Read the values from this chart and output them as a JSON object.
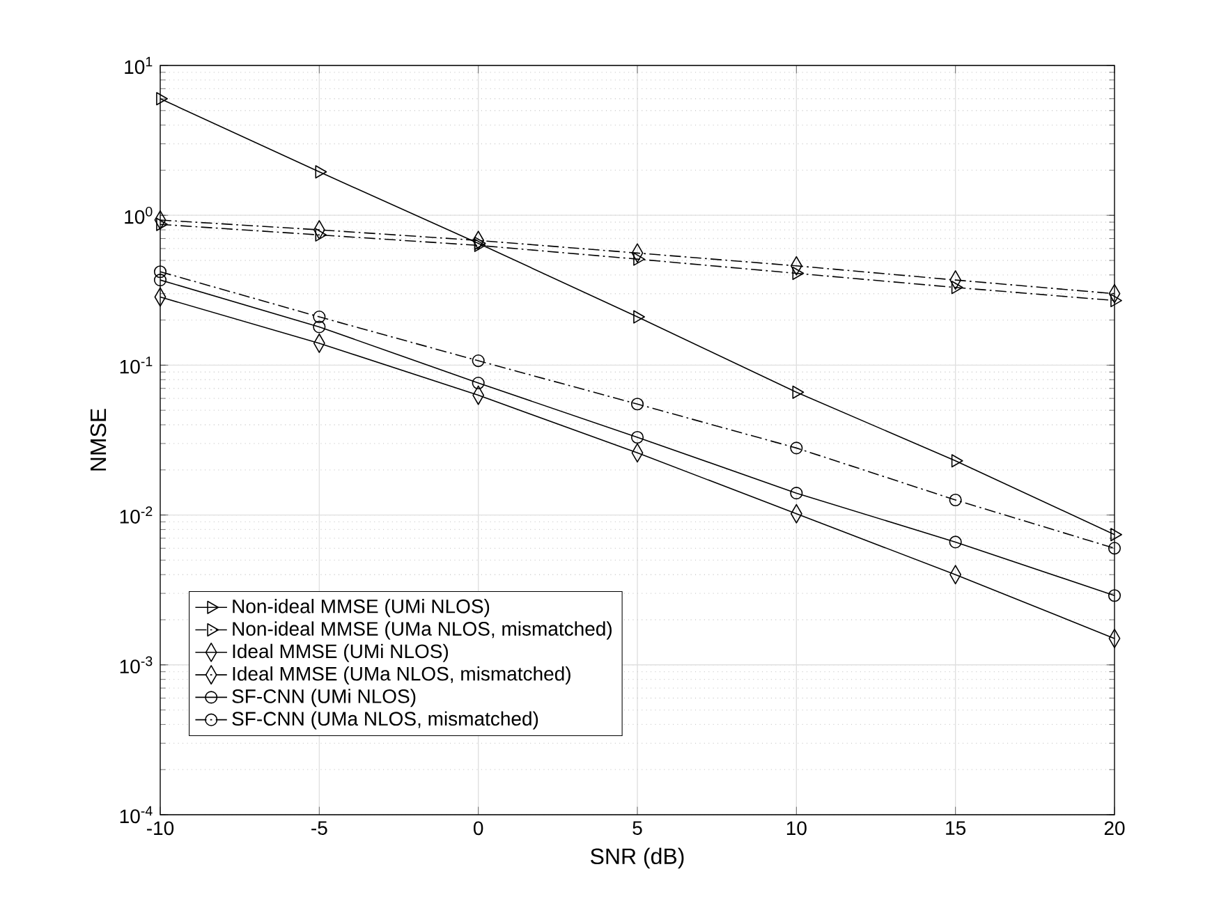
{
  "chart_data": {
    "type": "line",
    "xlabel": "SNR (dB)",
    "ylabel": "NMSE",
    "x": [
      -10,
      -5,
      0,
      5,
      10,
      15,
      20
    ],
    "xlim": [
      -10,
      20
    ],
    "xticks": [
      -10,
      -5,
      0,
      5,
      10,
      15,
      20
    ],
    "ylim": [
      0.0001,
      10
    ],
    "log": "y",
    "yticks": [
      {
        "value": 0.0001,
        "label": "10$^{-4}$"
      },
      {
        "value": 0.001,
        "label": "10$^{-3}$"
      },
      {
        "value": 0.01,
        "label": "10$^{-2}$"
      },
      {
        "value": 0.1,
        "label": "10$^{-1}$"
      },
      {
        "value": 1,
        "label": "10$^{0}$"
      },
      {
        "value": 10,
        "label": "10$^{1}$"
      }
    ],
    "grid": true,
    "legend": "bottom left",
    "series": [
      {
        "name": "Non-ideal MMSE (UMi NLOS)",
        "color": "#000000",
        "marker": "triangle",
        "line_style": "solid",
        "values": [
          6.0,
          1.95,
          0.65,
          0.21,
          0.066,
          0.023,
          0.0074
        ]
      },
      {
        "name": "Non-ideal MMSE (UMa NLOS, mismatched)",
        "color": "#000000",
        "marker": "triangle",
        "line_style": "dashdot",
        "values": [
          0.87,
          0.74,
          0.63,
          0.51,
          0.41,
          0.33,
          0.27
        ]
      },
      {
        "name": "Ideal MMSE (UMi NLOS)",
        "color": "#000000",
        "marker": "diamond",
        "line_style": "solid",
        "values": [
          0.285,
          0.14,
          0.063,
          0.026,
          0.0102,
          0.004,
          0.0015
        ]
      },
      {
        "name": "Ideal MMSE (UMa NLOS, mismatched)",
        "color": "#000000",
        "marker": "diamond",
        "line_style": "dashdot",
        "values": [
          0.93,
          0.8,
          0.68,
          0.56,
          0.46,
          0.37,
          0.3
        ]
      },
      {
        "name": "SF-CNN (UMi NLOS)",
        "color": "#000000",
        "marker": "circle",
        "line_style": "solid",
        "values": [
          0.37,
          0.18,
          0.076,
          0.033,
          0.014,
          0.0066,
          0.0029
        ]
      },
      {
        "name": "SF-CNN (UMa NLOS, mismatched)",
        "color": "#000000",
        "marker": "circle",
        "line_style": "dashdot",
        "values": [
          0.42,
          0.21,
          0.107,
          0.055,
          0.028,
          0.0126,
          0.006
        ]
      }
    ]
  }
}
